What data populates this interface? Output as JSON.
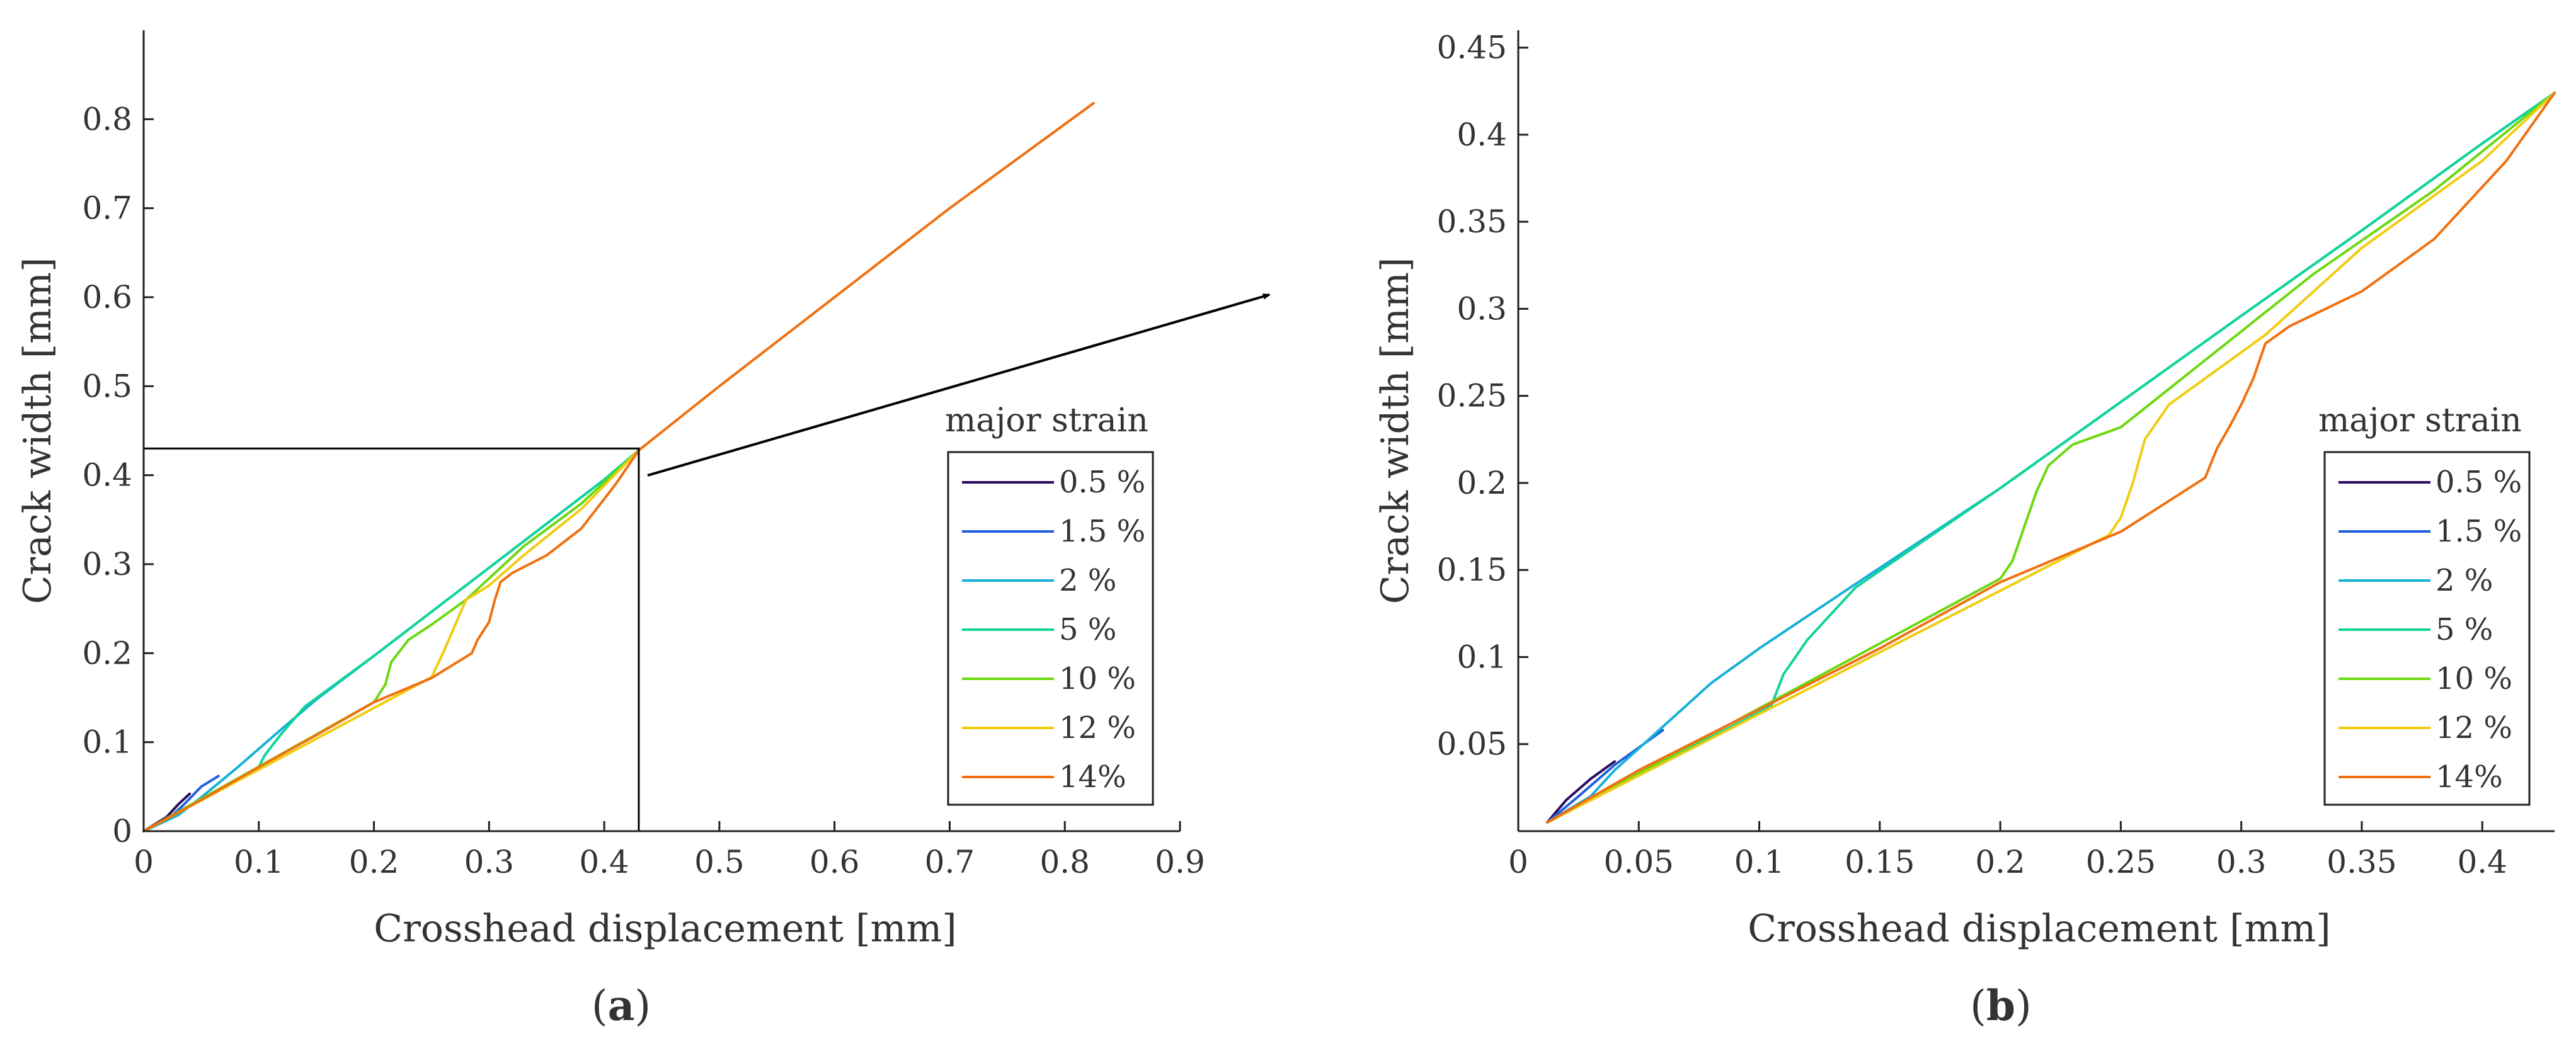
{
  "chart_data": [
    {
      "type": "line",
      "panel_label": "a",
      "xlabel": "Crosshead displacement [mm]",
      "ylabel": "Crack width [mm]",
      "xlim": [
        0,
        0.9
      ],
      "ylim": [
        0,
        0.9
      ],
      "xticks": [
        "0",
        "0.1",
        "0.2",
        "0.3",
        "0.4",
        "0.5",
        "0.6",
        "0.7",
        "0.8",
        "0.9"
      ],
      "yticks": [
        "0",
        "0.1",
        "0.2",
        "0.3",
        "0.4",
        "0.5",
        "0.6",
        "0.7",
        "0.8"
      ],
      "grid": false,
      "legend": {
        "title": "major strain",
        "position": "right"
      },
      "zoom_box": {
        "x": [
          0,
          0.43
        ],
        "y": [
          0,
          0.43
        ]
      },
      "series": [
        {
          "name": "0.5 %",
          "color": "#2a0a5e",
          "points": [
            [
              0,
              0
            ],
            [
              0.01,
              0.008
            ],
            [
              0.02,
              0.016
            ],
            [
              0.03,
              0.03
            ],
            [
              0.04,
              0.042
            ]
          ]
        },
        {
          "name": "1.5 %",
          "color": "#1f5fe0",
          "points": [
            [
              0,
              0
            ],
            [
              0.02,
              0.012
            ],
            [
              0.035,
              0.03
            ],
            [
              0.05,
              0.05
            ],
            [
              0.065,
              0.062
            ]
          ]
        },
        {
          "name": "2 %",
          "color": "#16b0d8",
          "points": [
            [
              0,
              0
            ],
            [
              0.03,
              0.018
            ],
            [
              0.05,
              0.038
            ],
            [
              0.08,
              0.07
            ],
            [
              0.12,
              0.115
            ],
            [
              0.15,
              0.148
            ],
            [
              0.2,
              0.197
            ],
            [
              0.3,
              0.296
            ],
            [
              0.4,
              0.395
            ],
            [
              0.43,
              0.428
            ]
          ]
        },
        {
          "name": "5 %",
          "color": "#10d49a",
          "points": [
            [
              0,
              0
            ],
            [
              0.1,
              0.072
            ],
            [
              0.105,
              0.085
            ],
            [
              0.12,
              0.11
            ],
            [
              0.14,
              0.14
            ],
            [
              0.2,
              0.197
            ],
            [
              0.3,
              0.296
            ],
            [
              0.4,
              0.395
            ],
            [
              0.43,
              0.428
            ]
          ]
        },
        {
          "name": "10 %",
          "color": "#6cd810",
          "points": [
            [
              0,
              0
            ],
            [
              0.2,
              0.145
            ],
            [
              0.21,
              0.165
            ],
            [
              0.215,
              0.19
            ],
            [
              0.23,
              0.215
            ],
            [
              0.25,
              0.232
            ],
            [
              0.28,
              0.26
            ],
            [
              0.33,
              0.32
            ],
            [
              0.38,
              0.368
            ],
            [
              0.43,
              0.428
            ]
          ]
        },
        {
          "name": "12 %",
          "color": "#f0cc10",
          "points": [
            [
              0,
              0
            ],
            [
              0.25,
              0.173
            ],
            [
              0.26,
              0.2
            ],
            [
              0.27,
              0.23
            ],
            [
              0.28,
              0.26
            ],
            [
              0.3,
              0.276
            ],
            [
              0.33,
              0.31
            ],
            [
              0.38,
              0.362
            ],
            [
              0.43,
              0.428
            ]
          ]
        },
        {
          "name": "14%",
          "color": "#f07010",
          "points": [
            [
              0,
              0
            ],
            [
              0.05,
              0.035
            ],
            [
              0.1,
              0.072
            ],
            [
              0.15,
              0.108
            ],
            [
              0.2,
              0.145
            ],
            [
              0.25,
              0.172
            ],
            [
              0.285,
              0.2
            ],
            [
              0.29,
              0.215
            ],
            [
              0.3,
              0.235
            ],
            [
              0.305,
              0.26
            ],
            [
              0.31,
              0.28
            ],
            [
              0.32,
              0.29
            ],
            [
              0.35,
              0.31
            ],
            [
              0.38,
              0.34
            ],
            [
              0.41,
              0.39
            ],
            [
              0.43,
              0.428
            ],
            [
              0.5,
              0.5
            ],
            [
              0.6,
              0.6
            ],
            [
              0.7,
              0.7
            ],
            [
              0.825,
              0.818
            ]
          ]
        }
      ]
    },
    {
      "type": "line",
      "panel_label": "b",
      "xlabel": "Crosshead displacement [mm]",
      "ylabel": "Crack width [mm]",
      "xlim": [
        0,
        0.43
      ],
      "ylim": [
        0,
        0.46
      ],
      "xticks": [
        "0",
        "0.05",
        "0.1",
        "0.15",
        "0.2",
        "0.25",
        "0.3",
        "0.35",
        "0.4"
      ],
      "yticks": [
        "0.05",
        "0.1",
        "0.15",
        "0.2",
        "0.25",
        "0.3",
        "0.35",
        "0.4",
        "0.45"
      ],
      "grid": false,
      "legend": {
        "title": "major strain",
        "position": "right"
      },
      "series": [
        {
          "name": "0.5 %",
          "color": "#2a0a5e",
          "points": [
            [
              0.012,
              0.005
            ],
            [
              0.02,
              0.018
            ],
            [
              0.03,
              0.03
            ],
            [
              0.04,
              0.04
            ]
          ]
        },
        {
          "name": "1.5 %",
          "color": "#1f5fe0",
          "points": [
            [
              0.012,
              0.005
            ],
            [
              0.025,
              0.02
            ],
            [
              0.04,
              0.038
            ],
            [
              0.05,
              0.048
            ],
            [
              0.06,
              0.058
            ]
          ]
        },
        {
          "name": "2 %",
          "color": "#16b0d8",
          "points": [
            [
              0.012,
              0.005
            ],
            [
              0.03,
              0.02
            ],
            [
              0.04,
              0.035
            ],
            [
              0.06,
              0.06
            ],
            [
              0.08,
              0.085
            ],
            [
              0.1,
              0.105
            ],
            [
              0.14,
              0.142
            ],
            [
              0.2,
              0.197
            ],
            [
              0.3,
              0.296
            ],
            [
              0.35,
              0.345
            ],
            [
              0.4,
              0.395
            ],
            [
              0.43,
              0.424
            ]
          ]
        },
        {
          "name": "5 %",
          "color": "#10d49a",
          "points": [
            [
              0.012,
              0.005
            ],
            [
              0.105,
              0.072
            ],
            [
              0.11,
              0.09
            ],
            [
              0.12,
              0.11
            ],
            [
              0.13,
              0.125
            ],
            [
              0.14,
              0.14
            ],
            [
              0.2,
              0.197
            ],
            [
              0.3,
              0.296
            ],
            [
              0.35,
              0.345
            ],
            [
              0.4,
              0.395
            ],
            [
              0.43,
              0.424
            ]
          ]
        },
        {
          "name": "10 %",
          "color": "#6cd810",
          "points": [
            [
              0.012,
              0.005
            ],
            [
              0.2,
              0.145
            ],
            [
              0.205,
              0.155
            ],
            [
              0.21,
              0.175
            ],
            [
              0.215,
              0.195
            ],
            [
              0.22,
              0.21
            ],
            [
              0.23,
              0.222
            ],
            [
              0.25,
              0.232
            ],
            [
              0.28,
              0.265
            ],
            [
              0.33,
              0.32
            ],
            [
              0.38,
              0.368
            ],
            [
              0.43,
              0.424
            ]
          ]
        },
        {
          "name": "12 %",
          "color": "#f0cc10",
          "points": [
            [
              0.012,
              0.005
            ],
            [
              0.245,
              0.17
            ],
            [
              0.25,
              0.18
            ],
            [
              0.255,
              0.2
            ],
            [
              0.26,
              0.225
            ],
            [
              0.27,
              0.245
            ],
            [
              0.29,
              0.265
            ],
            [
              0.31,
              0.285
            ],
            [
              0.35,
              0.335
            ],
            [
              0.4,
              0.385
            ],
            [
              0.43,
              0.424
            ]
          ]
        },
        {
          "name": "14%",
          "color": "#f07010",
          "points": [
            [
              0.012,
              0.005
            ],
            [
              0.05,
              0.035
            ],
            [
              0.1,
              0.07
            ],
            [
              0.15,
              0.105
            ],
            [
              0.2,
              0.143
            ],
            [
              0.25,
              0.172
            ],
            [
              0.285,
              0.203
            ],
            [
              0.29,
              0.22
            ],
            [
              0.295,
              0.232
            ],
            [
              0.3,
              0.245
            ],
            [
              0.305,
              0.26
            ],
            [
              0.31,
              0.28
            ],
            [
              0.32,
              0.29
            ],
            [
              0.35,
              0.31
            ],
            [
              0.38,
              0.34
            ],
            [
              0.41,
              0.385
            ],
            [
              0.43,
              0.424
            ]
          ]
        }
      ]
    }
  ]
}
